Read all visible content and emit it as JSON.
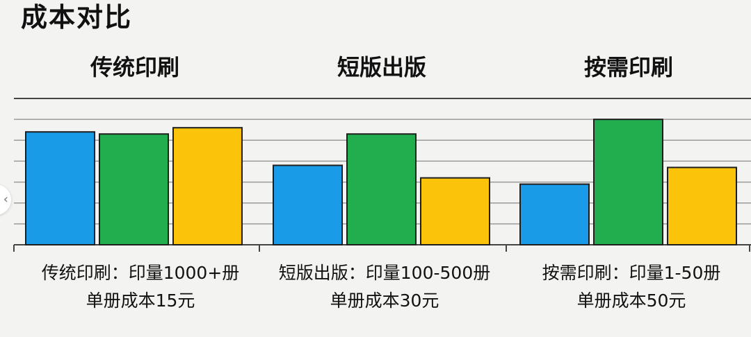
{
  "page_title": "成本对比",
  "nav": {
    "icon": "chevron-left-icon",
    "glyph": "‹"
  },
  "chart_data": {
    "type": "bar",
    "title": "成本对比",
    "categories": [
      "传统印刷",
      "短版出版",
      "按需印刷"
    ],
    "series": [
      {
        "color": "#1a9be8",
        "values": [
          5.4,
          3.8,
          2.9
        ]
      },
      {
        "color": "#22ad4e",
        "values": [
          5.3,
          5.3,
          6.0
        ]
      },
      {
        "color": "#fbc30a",
        "values": [
          5.6,
          3.2,
          3.7
        ]
      }
    ],
    "ylim": [
      0,
      7
    ],
    "grid": true,
    "gridline_count": 7,
    "legend": "none",
    "captions": [
      {
        "line1": "传统印刷：印量1000+册",
        "line2": "单册成本15元"
      },
      {
        "line1": "短版出版：印量100-500册",
        "line2": "单册成本30元"
      },
      {
        "line1": "按需印刷：印量1-50册",
        "line2": "单册成本50元"
      }
    ]
  }
}
